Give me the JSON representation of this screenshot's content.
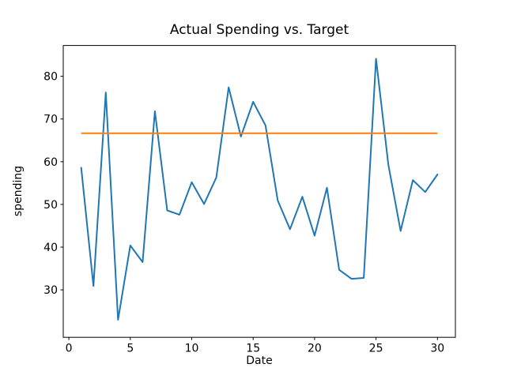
{
  "chart_data": {
    "type": "line",
    "title": "Actual Spending vs. Target",
    "xlabel": "Date",
    "ylabel": "spending",
    "x": [
      1,
      2,
      3,
      4,
      5,
      6,
      7,
      8,
      9,
      10,
      11,
      12,
      13,
      14,
      15,
      16,
      17,
      18,
      19,
      20,
      21,
      22,
      23,
      24,
      25,
      26,
      27,
      28,
      29,
      30
    ],
    "series": [
      {
        "name": "actual-spending",
        "color": "#1f77b4",
        "values": [
          58.6,
          30.9,
          76.2,
          23.0,
          40.4,
          36.5,
          71.8,
          48.6,
          47.6,
          55.2,
          50.1,
          56.3,
          77.4,
          65.9,
          74.0,
          68.5,
          50.9,
          44.2,
          51.8,
          42.7,
          53.9,
          34.7,
          32.6,
          32.8,
          84.1,
          59.3,
          43.8,
          55.7,
          52.9,
          57.0
        ]
      },
      {
        "name": "target",
        "type": "hline",
        "color": "#ff7f0e",
        "value": 66.67,
        "x_start": 1,
        "x_end": 30
      }
    ],
    "xticks": [
      0,
      5,
      10,
      15,
      20,
      25,
      30
    ],
    "yticks": [
      30,
      40,
      50,
      60,
      70,
      80
    ],
    "xlim": [
      -0.46,
      31.46
    ],
    "ylim": [
      18.9,
      87.2
    ],
    "grid": false,
    "legend_position": "none",
    "background_color": "#ffffff",
    "axis_color": "#000000"
  }
}
